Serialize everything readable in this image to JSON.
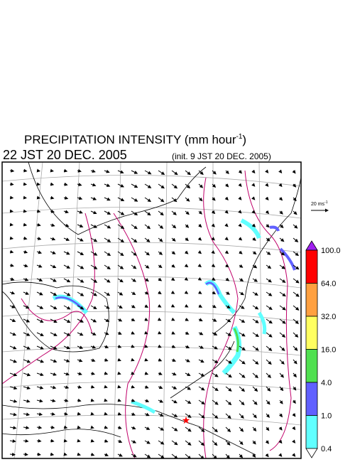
{
  "header": {
    "title": "PRECIPITATION INTENSITY (mm hour",
    "title_superscript": "-1",
    "title_close": ")",
    "valid_time": "22 JST 20 DEC. 2005",
    "init_time": "(init. 9 JST 20 DEC. 2005)"
  },
  "vector_key": {
    "label": "20 ms",
    "superscript": "-1"
  },
  "colorbar": {
    "labels": [
      "100.0",
      "64.0",
      "32.0",
      "16.0",
      "4.0",
      "1.0",
      "0.4"
    ],
    "colors": [
      "#a020f0",
      "#ff0000",
      "#ffa040",
      "#ffff60",
      "#50e050",
      "#6060ff",
      "#60ffff",
      "#ffffff"
    ]
  }
}
